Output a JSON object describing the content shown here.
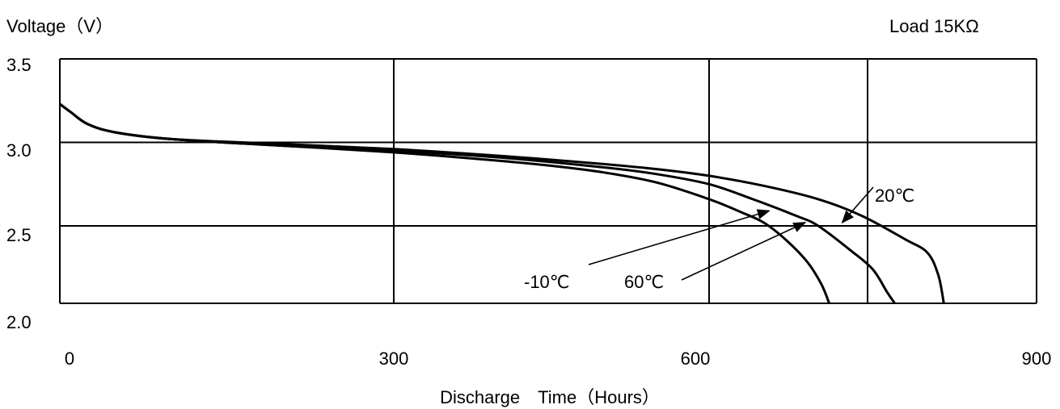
{
  "chart_data": {
    "type": "line",
    "title": "",
    "ylabel": "Voltage（V）",
    "xlabel": "Discharge　Time（Hours）",
    "condition": "Load 15KΩ",
    "xlim": [
      0,
      900
    ],
    "ylim": [
      2.0,
      3.5
    ],
    "x_ticks": [
      "0",
      "300",
      "600",
      "900"
    ],
    "y_ticks": [
      "3.5",
      "3.0",
      "2.5",
      "2.0"
    ],
    "grid": true,
    "series": [
      {
        "name": "20℃",
        "x": [
          0,
          10,
          25,
          50,
          100,
          200,
          300,
          400,
          500,
          550,
          600,
          650,
          700,
          740,
          780,
          800,
          810,
          815
        ],
        "y": [
          3.23,
          3.18,
          3.11,
          3.06,
          3.02,
          2.99,
          2.96,
          2.92,
          2.87,
          2.84,
          2.8,
          2.74,
          2.66,
          2.56,
          2.44,
          2.37,
          2.25,
          2.1
        ]
      },
      {
        "name": "60℃",
        "x": [
          0,
          10,
          25,
          50,
          100,
          200,
          300,
          400,
          500,
          550,
          600,
          640,
          680,
          700,
          730,
          750,
          763,
          770
        ],
        "y": [
          3.23,
          3.18,
          3.11,
          3.06,
          3.02,
          2.98,
          2.95,
          2.91,
          2.85,
          2.81,
          2.75,
          2.66,
          2.56,
          2.5,
          2.38,
          2.28,
          2.16,
          2.1
        ]
      },
      {
        "name": "-10℃",
        "x": [
          0,
          10,
          25,
          50,
          100,
          200,
          300,
          400,
          450,
          500,
          550,
          600,
          630,
          650,
          670,
          690,
          703,
          710
        ],
        "y": [
          3.23,
          3.18,
          3.11,
          3.06,
          3.02,
          2.98,
          2.94,
          2.89,
          2.86,
          2.82,
          2.76,
          2.66,
          2.58,
          2.52,
          2.44,
          2.32,
          2.2,
          2.1
        ]
      }
    ],
    "annotations": [
      {
        "text": "20℃",
        "series": "20℃",
        "x": 722,
        "y": 2.52,
        "label_x": 764,
        "label_y": 2.72
      },
      {
        "text": "60℃",
        "series": "60℃",
        "x": 688,
        "y": 2.52,
        "label_x": 585,
        "label_y": 2.24
      },
      {
        "text": "-10℃",
        "series": "-10℃",
        "x": 655,
        "y": 2.59,
        "label_x": 500,
        "label_y": 2.24
      }
    ]
  }
}
